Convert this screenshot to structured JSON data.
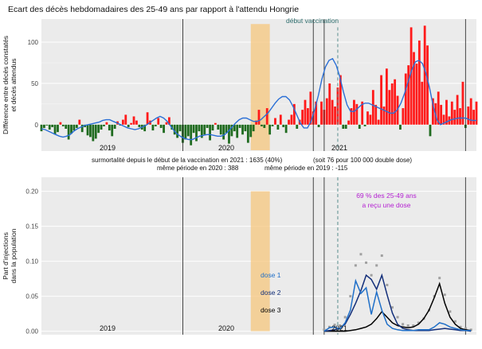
{
  "chart_data": [
    {
      "type": "bar",
      "title": "Ecart des décès hebdomadaires des 25-49 ans par rapport à l'attendu Hongrie",
      "ylabel_line1": "Différence entre décès constatés",
      "ylabel_line2": "et décès attendus",
      "xlabel": "",
      "ylim": [
        -32,
        128
      ],
      "yticks": [
        0,
        50,
        100
      ],
      "year_labels": [
        "2019",
        "2020",
        "2021"
      ],
      "vaccination_label": "début vaccination",
      "weeks_start": 0,
      "x_range": [
        0,
        160
      ],
      "year_lines": [
        52,
        104,
        156
      ],
      "black_line_extra": 125,
      "vaccination_week": 104,
      "shaded_weeks": [
        77,
        84
      ],
      "series": [
        {
          "name": "excess deaths (weekly)",
          "values": [
            -8,
            -4,
            -1,
            -6,
            -3,
            -12,
            -9,
            3,
            -2,
            -5,
            -18,
            -11,
            -7,
            -4,
            6,
            -9,
            -3,
            -13,
            -15,
            -20,
            -17,
            -10,
            -6,
            -2,
            3,
            -7,
            -14,
            -5,
            4,
            -1,
            6,
            12,
            -3,
            2,
            10,
            5,
            -3,
            -6,
            -8,
            15,
            5,
            -7,
            -2,
            8,
            -4,
            -10,
            3,
            9,
            -6,
            -12,
            -16,
            -8,
            -22,
            -18,
            -14,
            -25,
            -10,
            -20,
            -8,
            -16,
            -12,
            -4,
            -19,
            -7,
            2,
            -6,
            -12,
            -18,
            -10,
            -23,
            -14,
            -8,
            -16,
            -4,
            -12,
            -8,
            -22,
            -15,
            -8,
            5,
            18,
            -2,
            -4,
            20,
            -12,
            -2,
            8,
            -6,
            12,
            -3,
            -10,
            6,
            12,
            25,
            -5,
            6,
            18,
            30,
            20,
            40,
            16,
            28,
            -3,
            28,
            18,
            32,
            50,
            30,
            22,
            45,
            60,
            -5,
            -5,
            5,
            20,
            30,
            25,
            -5,
            28,
            -2,
            16,
            12,
            42,
            24,
            6,
            60,
            22,
            68,
            42,
            50,
            55,
            35,
            -6,
            20,
            62,
            72,
            118,
            88,
            74,
            102,
            52,
            120,
            96,
            -14,
            32,
            26,
            40,
            24,
            12,
            30,
            10,
            28,
            18,
            36,
            20,
            52,
            -4,
            22,
            32,
            18,
            28,
            26,
            20,
            6,
            34,
            66,
            74,
            60,
            56,
            64,
            82,
            32,
            72,
            -10,
            -8,
            -12,
            -2,
            4,
            8,
            2,
            6,
            10,
            -4,
            6,
            4
          ]
        },
        {
          "name": "smoothed trend",
          "values": [
            -5,
            -6,
            -8,
            -10,
            -12,
            -14,
            -15,
            -14,
            -12,
            -8,
            -5,
            -3,
            -1,
            0,
            1,
            2,
            3,
            5,
            6,
            6,
            4,
            2,
            0,
            -2,
            -4,
            -5,
            -6,
            -5,
            -3,
            -1,
            2,
            5,
            8,
            10,
            8,
            4,
            -2,
            -8,
            -12,
            -15,
            -17,
            -18,
            -18,
            -16,
            -14,
            -13,
            -12,
            -12,
            -13,
            -14,
            -14,
            -12,
            -8,
            -3,
            2,
            6,
            8,
            8,
            6,
            4,
            4,
            6,
            10,
            14,
            20,
            26,
            31,
            34,
            34,
            30,
            22,
            12,
            2,
            -4,
            -4,
            4,
            18,
            35,
            55,
            70,
            78,
            80,
            72,
            58,
            40,
            24,
            16,
            16,
            20,
            24,
            26,
            26,
            24,
            22,
            20,
            18,
            16,
            14,
            14,
            18,
            26,
            38,
            52,
            66,
            76,
            78,
            74,
            62,
            44,
            22,
            6,
            0,
            2,
            4,
            6,
            7,
            8,
            8,
            8,
            6,
            5,
            5
          ]
        }
      ]
    },
    {
      "type": "line",
      "title": "",
      "annotation_top": "surmortalité depuis le début de la vaccination en 2021 : 1635  (40%)",
      "annotation_top_right": "(soit 76 pour 100 000 double dose)",
      "annotation_2020": "même période en 2020 : 388",
      "annotation_2019": "même période en 2019 : -115",
      "ylabel_line1": "Part d'injections",
      "ylabel_line2": "dans la population",
      "ylim": [
        -0.005,
        0.22
      ],
      "yticks": [
        "0.00",
        "0.05",
        "0.10",
        "0.15",
        "0.20"
      ],
      "year_labels": [
        "2019",
        "2020",
        "2021"
      ],
      "vaccination_note_line1": "69 % des 25-49 ans",
      "vaccination_note_line2": "a reçu une dose",
      "legend": [
        {
          "name": "dose 1",
          "color": "#1f6fc8"
        },
        {
          "name": "dose 2",
          "color": "#132f7a"
        },
        {
          "name": "dose 3",
          "color": "#000000"
        }
      ],
      "x_start_week": 0,
      "x_range": [
        0,
        160
      ],
      "year_lines": [
        52,
        104,
        156
      ],
      "black_line_extra": 125,
      "vaccination_week": 104,
      "shaded_weeks": [
        77,
        84
      ],
      "x_series": [
        123,
        125,
        127,
        129,
        131,
        133,
        135,
        137,
        139,
        141,
        143,
        145,
        147,
        149,
        151,
        153,
        155,
        157,
        159,
        161,
        163,
        165,
        167,
        169,
        171,
        173,
        175,
        177,
        179
      ],
      "series": [
        {
          "name": "dose 1",
          "color": "#1f6fc8",
          "values": [
            0.0,
            0.005,
            0.006,
            0.003,
            0.012,
            0.03,
            0.072,
            0.054,
            0.062,
            0.024,
            0.056,
            0.03,
            0.01,
            0.004,
            0.002,
            0.001,
            0.001,
            0.001,
            0.002,
            0.002,
            0.002,
            0.006,
            0.012,
            0.01,
            0.006,
            0.004,
            0.002,
            0.001,
            0.001
          ]
        },
        {
          "name": "dose 2",
          "color": "#132f7a",
          "values": [
            0.0,
            0.001,
            0.002,
            0.004,
            0.01,
            0.024,
            0.04,
            0.058,
            0.08,
            0.074,
            0.06,
            0.08,
            0.052,
            0.026,
            0.01,
            0.004,
            0.002,
            0.001,
            0.001,
            0.001,
            0.001,
            0.002,
            0.003,
            0.004,
            0.003,
            0.002,
            0.001,
            0.001,
            0.0
          ]
        },
        {
          "name": "dose 3",
          "color": "#000000",
          "values": [
            0.0,
            0.0,
            0.0,
            0.0,
            0.0,
            0.001,
            0.002,
            0.004,
            0.006,
            0.01,
            0.018,
            0.028,
            0.02,
            0.012,
            0.008,
            0.006,
            0.005,
            0.006,
            0.01,
            0.018,
            0.03,
            0.048,
            0.068,
            0.04,
            0.02,
            0.01,
            0.004,
            0.002,
            0.001
          ]
        },
        {
          "name": "total (points)",
          "color": "#a0a0a0",
          "values": [
            0.002,
            0.006,
            0.009,
            0.008,
            0.02,
            0.05,
            0.094,
            0.11,
            0.098,
            0.08,
            0.094,
            0.108,
            0.066,
            0.034,
            0.02,
            0.01,
            0.008,
            0.008,
            0.012,
            0.018,
            0.03,
            0.05,
            0.076,
            0.052,
            0.028,
            0.014,
            0.006,
            0.004,
            0.002
          ]
        }
      ]
    }
  ]
}
